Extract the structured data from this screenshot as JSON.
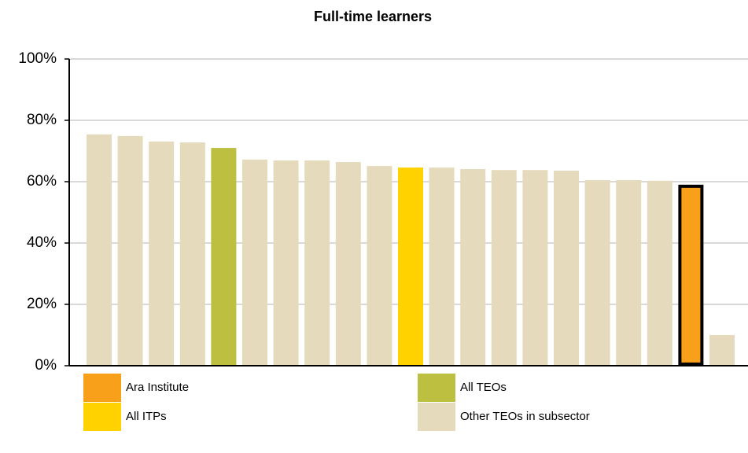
{
  "chart_data": {
    "type": "bar",
    "title": "Full-time learners",
    "categories": [
      null,
      null,
      null,
      null,
      null,
      null,
      null,
      null,
      null,
      null,
      null,
      null,
      null,
      null,
      null,
      null,
      null,
      null,
      null,
      null,
      null
    ],
    "values": [
      75.4,
      74.9,
      73.1,
      72.8,
      71.0,
      67.2,
      66.9,
      66.9,
      66.4,
      65.1,
      64.6,
      64.6,
      64.1,
      63.8,
      63.8,
      63.6,
      60.5,
      60.5,
      60.3,
      58.5,
      10.0
    ],
    "colors": [
      "#e5dbbc",
      "#e5dbbc",
      "#e5dbbc",
      "#e5dbbc",
      "#bcbf40",
      "#e5dbbc",
      "#e5dbbc",
      "#e5dbbc",
      "#e5dbbc",
      "#e5dbbc",
      "#ffd200",
      "#e5dbbc",
      "#e5dbbc",
      "#e5dbbc",
      "#e5dbbc",
      "#e5dbbc",
      "#e5dbbc",
      "#e5dbbc",
      "#e5dbbc",
      "#f9a01b",
      "#e5dbbc"
    ],
    "highlight_index": 19,
    "ylim": [
      0,
      100
    ],
    "yticks": [
      {
        "value": 0,
        "label": "0%"
      },
      {
        "value": 20,
        "label": "20%"
      },
      {
        "value": 40,
        "label": "40%"
      },
      {
        "value": 60,
        "label": "60%"
      },
      {
        "value": 80,
        "label": "80%"
      },
      {
        "value": 100,
        "label": "100%"
      }
    ],
    "grid": true,
    "legend": [
      {
        "name": "Ara Institute",
        "color": "#f9a01b"
      },
      {
        "name": "All TEOs",
        "color": "#bcbf40"
      },
      {
        "name": "All ITPs",
        "color": "#ffd200"
      },
      {
        "name": "Other TEOs in subsector",
        "color": "#e5dbbc"
      }
    ]
  }
}
